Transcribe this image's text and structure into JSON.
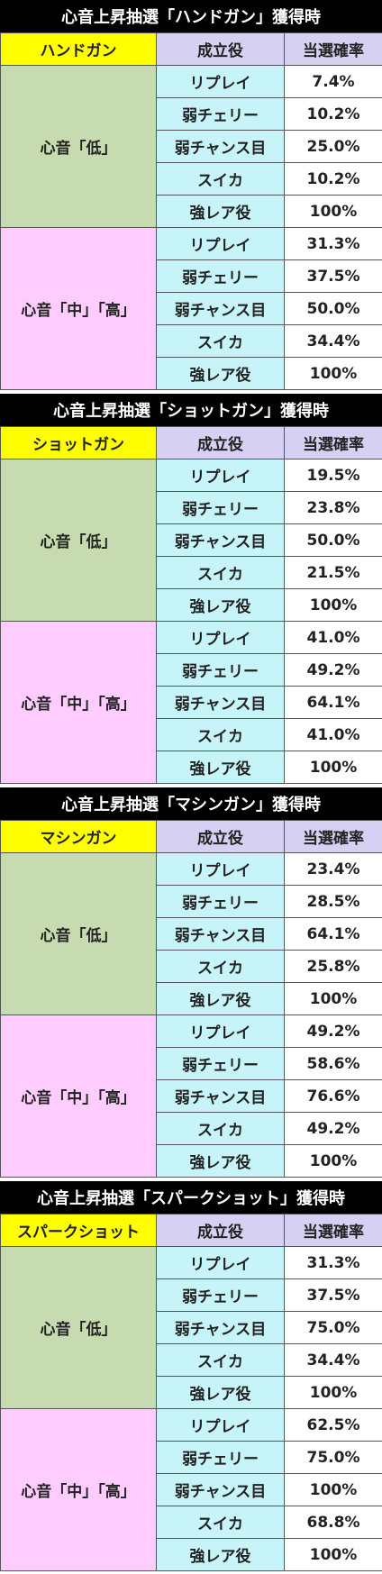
{
  "sections": [
    {
      "title": "心音上昇抽選「ハンドガン」獲得時",
      "weapon": "ハンドガン",
      "col_role": "成立役",
      "col_rate": "当選確率",
      "low_label": "心音「低」",
      "high_label": "心音「中」「高」",
      "low": [
        {
          "role": "リプレイ",
          "rate": "7.4%"
        },
        {
          "role": "弱チェリー",
          "rate": "10.2%"
        },
        {
          "role": "弱チャンス目",
          "rate": "25.0%"
        },
        {
          "role": "スイカ",
          "rate": "10.2%"
        },
        {
          "role": "強レア役",
          "rate": "100%"
        }
      ],
      "high": [
        {
          "role": "リプレイ",
          "rate": "31.3%"
        },
        {
          "role": "弱チェリー",
          "rate": "37.5%"
        },
        {
          "role": "弱チャンス目",
          "rate": "50.0%"
        },
        {
          "role": "スイカ",
          "rate": "34.4%"
        },
        {
          "role": "強レア役",
          "rate": "100%"
        }
      ]
    },
    {
      "title": "心音上昇抽選「ショットガン」獲得時",
      "weapon": "ショットガン",
      "col_role": "成立役",
      "col_rate": "当選確率",
      "low_label": "心音「低」",
      "high_label": "心音「中」「高」",
      "low": [
        {
          "role": "リプレイ",
          "rate": "19.5%"
        },
        {
          "role": "弱チェリー",
          "rate": "23.8%"
        },
        {
          "role": "弱チャンス目",
          "rate": "50.0%"
        },
        {
          "role": "スイカ",
          "rate": "21.5%"
        },
        {
          "role": "強レア役",
          "rate": "100%"
        }
      ],
      "high": [
        {
          "role": "リプレイ",
          "rate": "41.0%"
        },
        {
          "role": "弱チェリー",
          "rate": "49.2%"
        },
        {
          "role": "弱チャンス目",
          "rate": "64.1%"
        },
        {
          "role": "スイカ",
          "rate": "41.0%"
        },
        {
          "role": "強レア役",
          "rate": "100%"
        }
      ]
    },
    {
      "title": "心音上昇抽選「マシンガン」獲得時",
      "weapon": "マシンガン",
      "col_role": "成立役",
      "col_rate": "当選確率",
      "low_label": "心音「低」",
      "high_label": "心音「中」「高」",
      "low": [
        {
          "role": "リプレイ",
          "rate": "23.4%"
        },
        {
          "role": "弱チェリー",
          "rate": "28.5%"
        },
        {
          "role": "弱チャンス目",
          "rate": "64.1%"
        },
        {
          "role": "スイカ",
          "rate": "25.8%"
        },
        {
          "role": "強レア役",
          "rate": "100%"
        }
      ],
      "high": [
        {
          "role": "リプレイ",
          "rate": "49.2%"
        },
        {
          "role": "弱チェリー",
          "rate": "58.6%"
        },
        {
          "role": "弱チャンス目",
          "rate": "76.6%"
        },
        {
          "role": "スイカ",
          "rate": "49.2%"
        },
        {
          "role": "強レア役",
          "rate": "100%"
        }
      ]
    },
    {
      "title": "心音上昇抽選「スパークショット」獲得時",
      "weapon": "スパークショット",
      "col_role": "成立役",
      "col_rate": "当選確率",
      "low_label": "心音「低」",
      "high_label": "心音「中」「高」",
      "low": [
        {
          "role": "リプレイ",
          "rate": "31.3%"
        },
        {
          "role": "弱チェリー",
          "rate": "37.5%"
        },
        {
          "role": "弱チャンス目",
          "rate": "75.0%"
        },
        {
          "role": "スイカ",
          "rate": "34.4%"
        },
        {
          "role": "強レア役",
          "rate": "100%"
        }
      ],
      "high": [
        {
          "role": "リプレイ",
          "rate": "62.5%"
        },
        {
          "role": "弱チェリー",
          "rate": "75.0%"
        },
        {
          "role": "弱チャンス目",
          "rate": "100%"
        },
        {
          "role": "スイカ",
          "rate": "68.8%"
        },
        {
          "role": "強レア役",
          "rate": "100%"
        }
      ]
    }
  ]
}
